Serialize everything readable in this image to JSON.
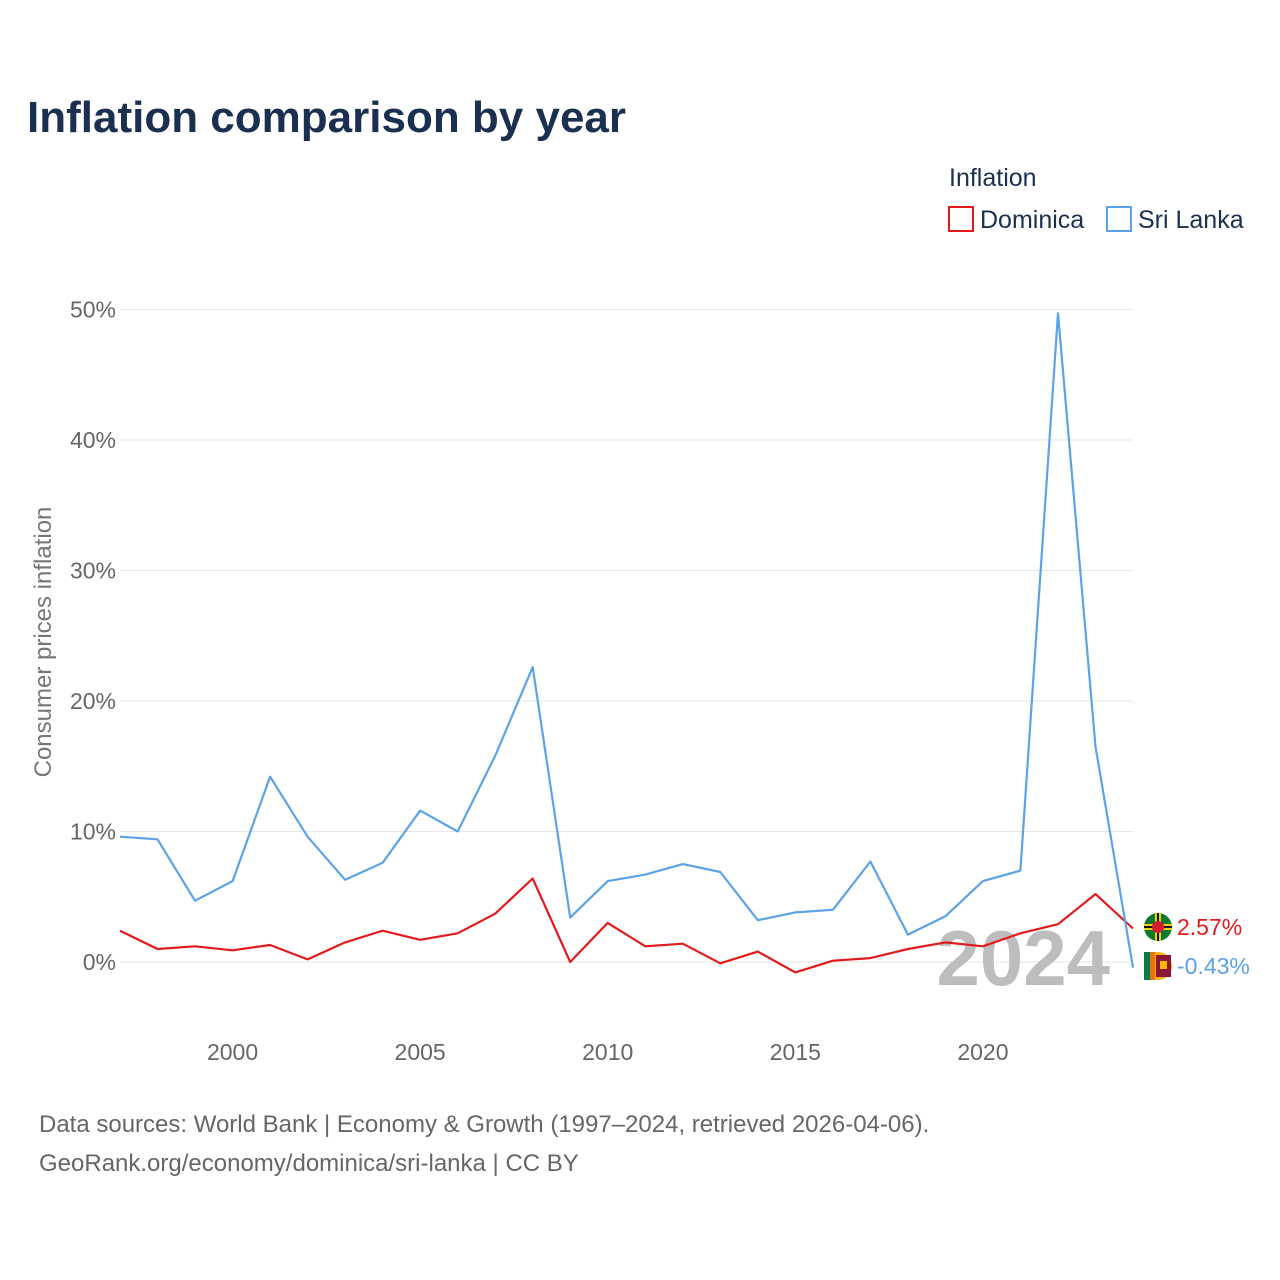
{
  "page": {
    "title": "Inflation comparison by year",
    "footer_line1": "Data sources: World Bank | Economy & Growth (1997–2024, retrieved 2026-04-06).",
    "footer_line2": "GeoRank.org/economy/dominica/sri-lanka | CC BY"
  },
  "legend": {
    "title": "Inflation",
    "items": [
      {
        "label": "Dominica",
        "color": "#e31a1c"
      },
      {
        "label": "Sri Lanka",
        "color": "#5ca3e6"
      }
    ]
  },
  "watermark_year": "2024",
  "chart_data": {
    "type": "line",
    "title": "Inflation comparison by year",
    "ylabel": "Consumer prices inflation",
    "xlabel": "",
    "x": [
      1997,
      1998,
      1999,
      2000,
      2001,
      2002,
      2003,
      2004,
      2005,
      2006,
      2007,
      2008,
      2009,
      2010,
      2011,
      2012,
      2013,
      2014,
      2015,
      2016,
      2017,
      2018,
      2019,
      2020,
      2021,
      2022,
      2023,
      2024
    ],
    "xlim": [
      1997,
      2024
    ],
    "ylim": [
      -5,
      50
    ],
    "x_ticks": [
      2000,
      2005,
      2010,
      2015,
      2020
    ],
    "x_tick_labels": [
      "2000",
      "2005",
      "2010",
      "2015",
      "2020"
    ],
    "y_ticks": [
      0,
      10,
      20,
      30,
      40,
      50
    ],
    "y_tick_labels": [
      "0%",
      "10%",
      "20%",
      "30%",
      "40%",
      "50%"
    ],
    "grid": true,
    "series": [
      {
        "name": "Dominica",
        "color": "#e31a1c",
        "end_label": "2.57%",
        "values": [
          2.4,
          1.0,
          1.2,
          0.9,
          1.3,
          0.2,
          1.5,
          2.4,
          1.7,
          2.2,
          3.7,
          6.4,
          0.0,
          3.0,
          1.2,
          1.4,
          -0.1,
          0.8,
          -0.8,
          0.1,
          0.3,
          1.0,
          1.5,
          1.2,
          2.2,
          2.9,
          5.2,
          2.57
        ]
      },
      {
        "name": "Sri Lanka",
        "color": "#5ca3e6",
        "end_label": "-0.43%",
        "values": [
          9.6,
          9.4,
          4.7,
          6.2,
          14.2,
          9.6,
          6.3,
          7.6,
          11.6,
          10.0,
          15.8,
          22.6,
          3.4,
          6.2,
          6.7,
          7.5,
          6.9,
          3.2,
          3.8,
          4.0,
          7.7,
          2.1,
          3.5,
          6.2,
          7.0,
          49.7,
          16.5,
          -0.43
        ]
      }
    ]
  }
}
